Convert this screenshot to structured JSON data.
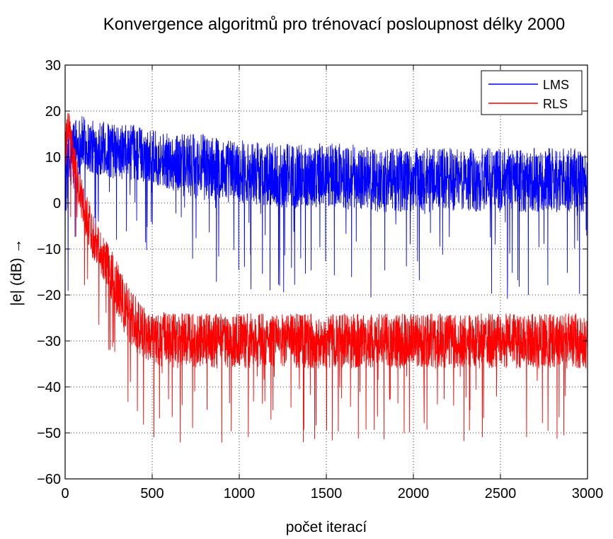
{
  "chart_data": {
    "type": "line",
    "title": "Konvergence algoritmů pro trénovací posloupnost délky 2000",
    "xlabel": "počet iterací",
    "ylabel": "|e| (dB) →",
    "xlim": [
      0,
      3000
    ],
    "ylim": [
      -60,
      30
    ],
    "xticks": [
      0,
      500,
      1000,
      1500,
      2000,
      2500,
      3000
    ],
    "yticks": [
      -60,
      -50,
      -40,
      -30,
      -20,
      -10,
      0,
      10,
      20,
      30
    ],
    "grid": true,
    "legend_position": "top-right",
    "series": [
      {
        "name": "LMS",
        "color": "#0000ff",
        "x": [
          0,
          50,
          100,
          150,
          200,
          300,
          400,
          500,
          600,
          700,
          800,
          900,
          1000,
          1200,
          1400,
          1600,
          1800,
          2000,
          2200,
          2400,
          2600,
          2800,
          3000
        ],
        "values": [
          5,
          12,
          13,
          12,
          12,
          11,
          11,
          10,
          9,
          8,
          8,
          7,
          7,
          6,
          6,
          6,
          5,
          5,
          5,
          5,
          5,
          5,
          5
        ],
        "spread": [
          9,
          7,
          6,
          6,
          6,
          6,
          6,
          6,
          6,
          7,
          7,
          7,
          7,
          7,
          7,
          7,
          7,
          7,
          7,
          7,
          7,
          7,
          7
        ],
        "min_observed": -22,
        "max_observed": 22
      },
      {
        "name": "RLS",
        "color": "#ff0000",
        "x": [
          0,
          20,
          50,
          100,
          150,
          200,
          250,
          300,
          350,
          400,
          450,
          500,
          600,
          800,
          1000,
          1500,
          2000,
          2500,
          3000
        ],
        "values": [
          10,
          17,
          8,
          0,
          -6,
          -10,
          -14,
          -19,
          -23,
          -26,
          -28,
          -29,
          -30,
          -30,
          -30,
          -30,
          -30,
          -30,
          -30
        ],
        "spread": [
          6,
          4,
          5,
          5,
          5,
          5,
          5,
          6,
          6,
          6,
          6,
          6,
          6,
          6,
          6,
          6,
          6,
          6,
          6
        ],
        "min_observed": -55,
        "max_observed": 20
      }
    ]
  }
}
